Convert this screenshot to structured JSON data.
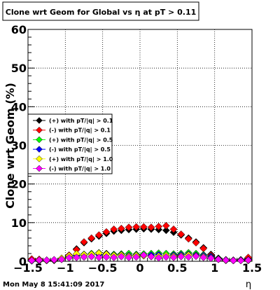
{
  "chart_data": {
    "type": "scatter",
    "title": "Clone wrt Geom for Global vs   η at pT > 0.11",
    "xlabel": "η",
    "ylabel": "Clone wrt Geom (%)",
    "xlim": [
      -1.5,
      1.5
    ],
    "ylim": [
      0,
      60
    ],
    "x_ticks": [
      "−1.5",
      "−1",
      "−0.5",
      "0",
      "0.5",
      "1",
      "1.5"
    ],
    "y_ticks": [
      "0",
      "10",
      "20",
      "30",
      "40",
      "50",
      "60"
    ],
    "grid": true,
    "legend_position": "center-left",
    "x": [
      -1.45,
      -1.35,
      -1.25,
      -1.15,
      -1.05,
      -0.95,
      -0.85,
      -0.75,
      -0.65,
      -0.55,
      -0.45,
      -0.35,
      -0.25,
      -0.15,
      -0.05,
      0.05,
      0.15,
      0.25,
      0.35,
      0.45,
      0.55,
      0.65,
      0.75,
      0.85,
      0.95,
      1.05,
      1.15,
      1.25,
      1.35,
      1.45
    ],
    "series": [
      {
        "name": "(+) with pT/|q| > 0.1",
        "color": "#000000",
        "values": [
          0.3,
          0.3,
          0.2,
          0.3,
          0.5,
          1.5,
          3.2,
          4.8,
          5.8,
          6.5,
          7.2,
          7.8,
          8.0,
          8.2,
          8.3,
          8.4,
          8.3,
          8.2,
          8.0,
          7.5,
          6.8,
          6.0,
          5.0,
          3.5,
          1.8,
          0.8,
          0.4,
          0.3,
          0.4,
          0.6
        ]
      },
      {
        "name": "(-) with pT/|q| > 0.1",
        "color": "#ff0000",
        "values": [
          0.6,
          0.5,
          0.3,
          0.2,
          0.6,
          1.6,
          3.0,
          5.0,
          6.0,
          6.8,
          7.6,
          8.3,
          8.5,
          8.8,
          8.9,
          8.9,
          8.8,
          9.0,
          9.2,
          8.3,
          7.0,
          5.8,
          4.8,
          3.3,
          1.6,
          0.7,
          0.3,
          0.2,
          0.3,
          1.0
        ]
      },
      {
        "name": "(+) with pT/|q| > 0.5",
        "color": "#00ff00",
        "values": [
          0.2,
          0.2,
          0.2,
          0.3,
          0.6,
          1.2,
          1.5,
          1.8,
          2.0,
          2.2,
          2.0,
          1.8,
          1.9,
          2.0,
          1.8,
          1.9,
          2.0,
          2.1,
          2.0,
          1.9,
          2.0,
          2.2,
          2.0,
          1.7,
          1.3,
          0.7,
          0.3,
          0.2,
          0.2,
          0.3
        ]
      },
      {
        "name": "(-) with pT/|q| > 0.5",
        "color": "#0000ff",
        "values": [
          0.1,
          0.1,
          0.2,
          0.3,
          0.7,
          1.1,
          1.4,
          1.6,
          1.8,
          1.7,
          1.9,
          1.6,
          1.7,
          1.5,
          1.6,
          1.5,
          1.6,
          1.7,
          1.5,
          1.6,
          1.7,
          1.8,
          1.6,
          1.5,
          1.2,
          0.6,
          0.3,
          0.2,
          0.3,
          0.4
        ]
      },
      {
        "name": "(+) with pT/|q| > 1.0",
        "color": "#ffff00",
        "values": [
          0.2,
          0.2,
          0.2,
          0.3,
          0.8,
          1.4,
          1.9,
          1.7,
          1.8,
          2.1,
          1.8,
          1.5,
          1.6,
          1.3,
          1.5,
          1.4,
          1.2,
          1.3,
          1.5,
          1.3,
          1.4,
          1.6,
          1.4,
          1.2,
          0.9,
          0.5,
          0.2,
          0.2,
          0.2,
          0.2
        ]
      },
      {
        "name": "(-) with pT/|q| > 1.0",
        "color": "#ff00ff",
        "values": [
          0.2,
          0.3,
          0.3,
          0.4,
          0.5,
          0.9,
          1.0,
          1.1,
          1.2,
          1.0,
          1.1,
          1.0,
          1.2,
          1.0,
          1.1,
          1.6,
          1.2,
          0.9,
          1.1,
          1.0,
          1.2,
          1.1,
          1.3,
          1.0,
          0.8,
          0.5,
          0.3,
          0.2,
          0.2,
          0.3
        ]
      }
    ]
  },
  "timestamp": "Mon May  8 15:41:09 2017"
}
